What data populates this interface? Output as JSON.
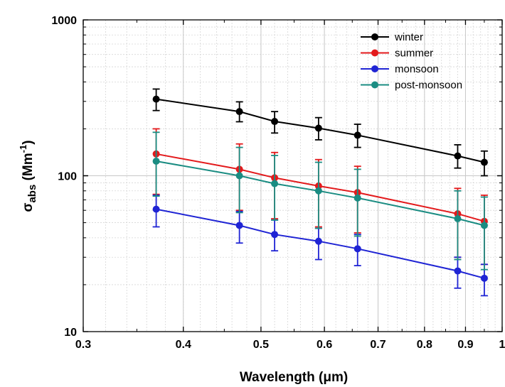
{
  "chart_data": {
    "type": "line",
    "x_scale": "log",
    "y_scale": "log",
    "xlim": [
      0.3,
      1.0
    ],
    "ylim": [
      10,
      1000
    ],
    "x_ticks": [
      0.3,
      0.4,
      0.5,
      0.6,
      0.7,
      0.8,
      0.9,
      1.0
    ],
    "x_tick_labels": [
      "0.3",
      "0.4",
      "0.5",
      "0.6",
      "0.7",
      "0.8",
      "0.9",
      "1"
    ],
    "y_ticks": [
      10,
      100,
      1000
    ],
    "y_tick_labels": [
      "10",
      "100",
      "1000"
    ],
    "xlabel": "Wavelength (μm)",
    "ylabel_main": "σ",
    "ylabel_sub": "abs",
    "ylabel_unit": " (Mm",
    "ylabel_sup": "-1",
    "ylabel_close": ")",
    "grid": true,
    "legend_position": "top-right",
    "x": [
      0.37,
      0.47,
      0.52,
      0.59,
      0.66,
      0.88,
      0.95
    ],
    "series": [
      {
        "name": "winter",
        "color": "#000000",
        "values": [
          310,
          258,
          223,
          202,
          182,
          134,
          122
        ],
        "err_low": [
          262,
          222,
          188,
          170,
          152,
          112,
          100
        ],
        "err_high": [
          360,
          298,
          258,
          236,
          214,
          158,
          144
        ]
      },
      {
        "name": "summer",
        "color": "#e31a1c",
        "values": [
          138,
          110,
          97,
          86,
          78,
          57,
          51
        ],
        "err_low": [
          76,
          60,
          53,
          47,
          43,
          30,
          27
        ],
        "err_high": [
          200,
          160,
          141,
          127,
          115,
          83,
          75
        ]
      },
      {
        "name": "monsoon",
        "color": "#1f24d4",
        "values": [
          61,
          48,
          42,
          38,
          34,
          24.5,
          22
        ],
        "err_low": [
          47,
          37,
          33,
          29,
          26.5,
          19,
          17
        ],
        "err_high": [
          75,
          59,
          52,
          46,
          42,
          30,
          27
        ]
      },
      {
        "name": "post-monsoon",
        "color": "#1a8c82",
        "values": [
          124,
          100,
          89,
          80,
          72,
          53,
          48
        ],
        "err_low": [
          74,
          58,
          52,
          46,
          41,
          29,
          25
        ],
        "err_high": [
          190,
          152,
          135,
          122,
          110,
          80,
          73
        ]
      }
    ]
  }
}
